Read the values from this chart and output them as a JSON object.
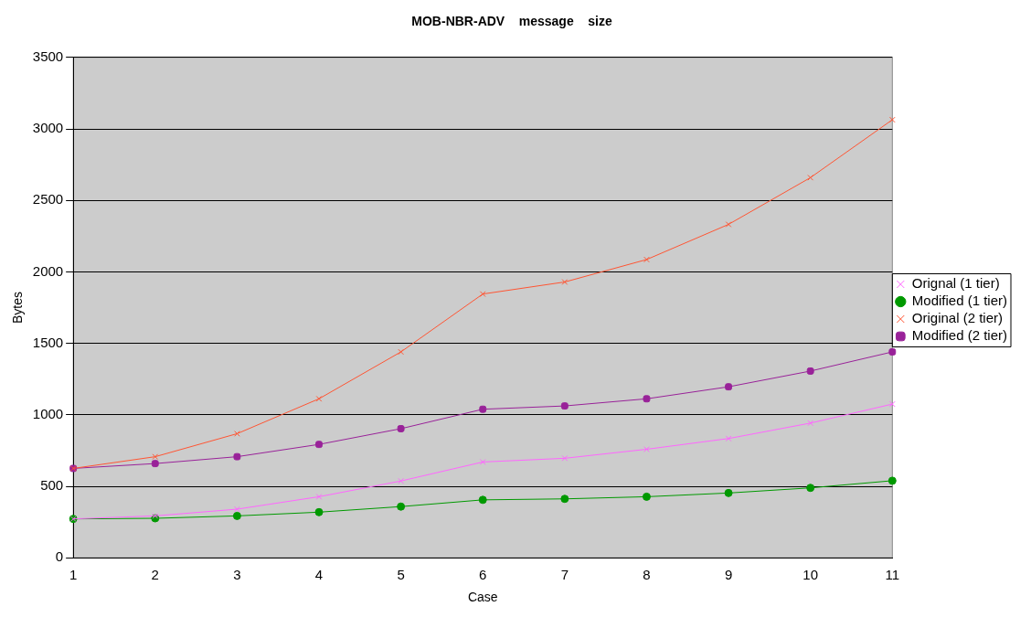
{
  "chart_data": {
    "type": "line",
    "title": "MOB-NBR-ADV    message    size",
    "xlabel": "Case",
    "ylabel": "Bytes",
    "categories": [
      "1",
      "2",
      "3",
      "4",
      "5",
      "6",
      "7",
      "8",
      "9",
      "10",
      "11"
    ],
    "series": [
      {
        "name": "Orignal (1 tier)",
        "color": "#ff66ff",
        "marker": "cross",
        "values": [
          272,
          293,
          340,
          427,
          537,
          670,
          696,
          759,
          834,
          942,
          1075
        ]
      },
      {
        "name": "Modified (1 tier)",
        "color": "#009900",
        "marker": "circle",
        "values": [
          272,
          276,
          293,
          319,
          358,
          405,
          412,
          427,
          453,
          489,
          539
        ]
      },
      {
        "name": "Original (2 tier)",
        "color": "#ff5533",
        "marker": "cross",
        "values": [
          625,
          707,
          868,
          1112,
          1440,
          1845,
          1929,
          2086,
          2332,
          2659,
          3064
        ]
      },
      {
        "name": "Modified (2 tier)",
        "color": "#992299",
        "marker": "square",
        "values": [
          625,
          659,
          707,
          793,
          903,
          1039,
          1062,
          1112,
          1196,
          1306,
          1440
        ]
      }
    ],
    "ylim": [
      0,
      3500
    ],
    "yticks": [
      0,
      500,
      1000,
      1500,
      2000,
      2500,
      3000,
      3500
    ],
    "grid": "y",
    "legend": "right",
    "line_style": "solid"
  }
}
